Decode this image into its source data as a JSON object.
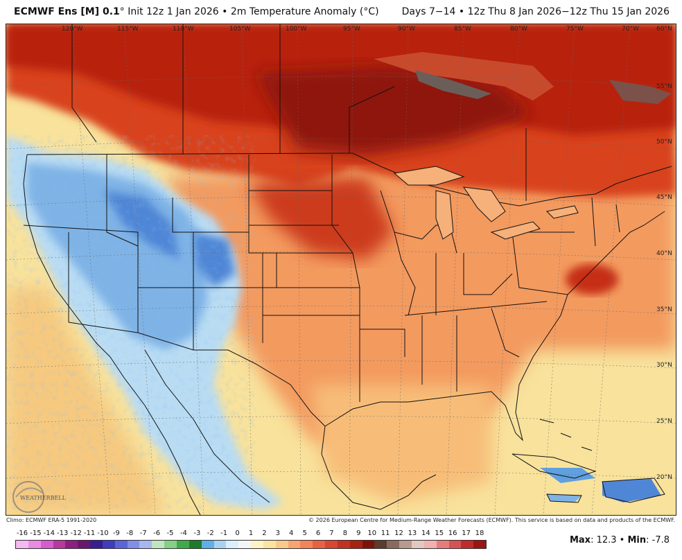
{
  "header": {
    "model": "ECMWF Ens [M] 0.1",
    "init": "° Init 12z 1 Jan 2026 • 2m Temperature Anomaly (°C)",
    "valid": "Days 7−14 • 12z Thu 8 Jan 2026−12z Thu 15 Jan 2026"
  },
  "map": {
    "lon_labels": [
      "120°W",
      "115°W",
      "110°W",
      "105°W",
      "100°W",
      "95°W",
      "90°W",
      "85°W",
      "80°W",
      "75°W",
      "70°W",
      "60°N"
    ],
    "lat_labels": [
      "55°N",
      "50°N",
      "45°N",
      "40°N",
      "35°N",
      "30°N",
      "25°N",
      "20°N"
    ],
    "logo_text": "WEATHERBELL"
  },
  "footer": {
    "climo": "Climo: ECMWF ERA-5 1991-2020",
    "copyright": "© 2026 European Centre for Medium-Range Weather Forecasts (ECMWF). This service is based on data and products of the ECMWF."
  },
  "colorbar": {
    "labels": [
      "-16",
      "-15",
      "-14",
      "-13",
      "-12",
      "-11",
      "-10",
      "-9",
      "-8",
      "-7",
      "-6",
      "-5",
      "-4",
      "-3",
      "-2",
      "-1",
      "0",
      "1",
      "2",
      "3",
      "4",
      "5",
      "6",
      "7",
      "8",
      "9",
      "10",
      "11",
      "12",
      "13",
      "14",
      "15",
      "16",
      "17",
      "18"
    ],
    "colors": [
      "#f4b9f0",
      "#ea8be2",
      "#d65ccf",
      "#b8389e",
      "#8c2080",
      "#6a1770",
      "#3a1d91",
      "#3f3dbb",
      "#5a65d6",
      "#7f8fe6",
      "#a8b6f0",
      "#bfe6c0",
      "#86cf86",
      "#3faa4a",
      "#1f7a2c",
      "#5fb0e8",
      "#a9d2f2",
      "#dbeefb",
      "#f5f5f5",
      "#fdf3c4",
      "#fbe4a0",
      "#f9c98a",
      "#f6a570",
      "#f2845a",
      "#e76243",
      "#d84531",
      "#c23121",
      "#a82111",
      "#7e1208",
      "#5d3a2c",
      "#8a6a5e",
      "#b89a8f",
      "#e2c8c2",
      "#f2b0b0",
      "#e57d7d",
      "#d65353",
      "#c02b2b",
      "#9b1515"
    ]
  },
  "stats": {
    "max_label": "Max",
    "max_value": ": 12.3 • ",
    "min_label": "Min",
    "min_value": ": -7.8"
  }
}
